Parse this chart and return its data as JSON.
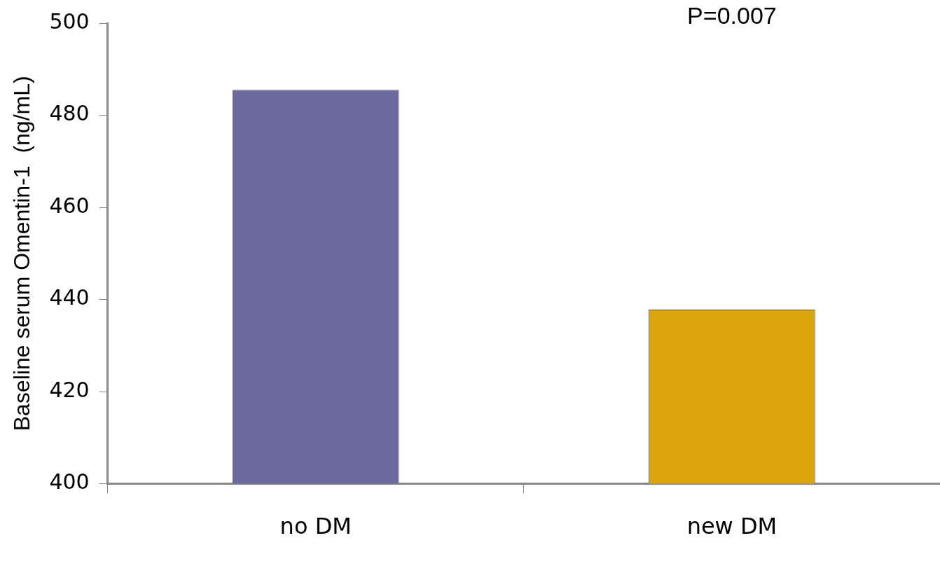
{
  "chart_data": {
    "type": "bar",
    "ylabel": "Baseline serum Omentin-1  (ng/mL)",
    "categories": [
      "no DM",
      "new DM"
    ],
    "series": [
      {
        "colors": [
          "#6a6a9e",
          "#dca40c"
        ],
        "values": [
          485.5,
          437.8
        ]
      }
    ],
    "ylim": [
      400,
      500
    ],
    "yticks": [
      400,
      420,
      440,
      460,
      480,
      500
    ],
    "grid": false,
    "legend": false,
    "annotations": [
      "P=0.007"
    ]
  }
}
